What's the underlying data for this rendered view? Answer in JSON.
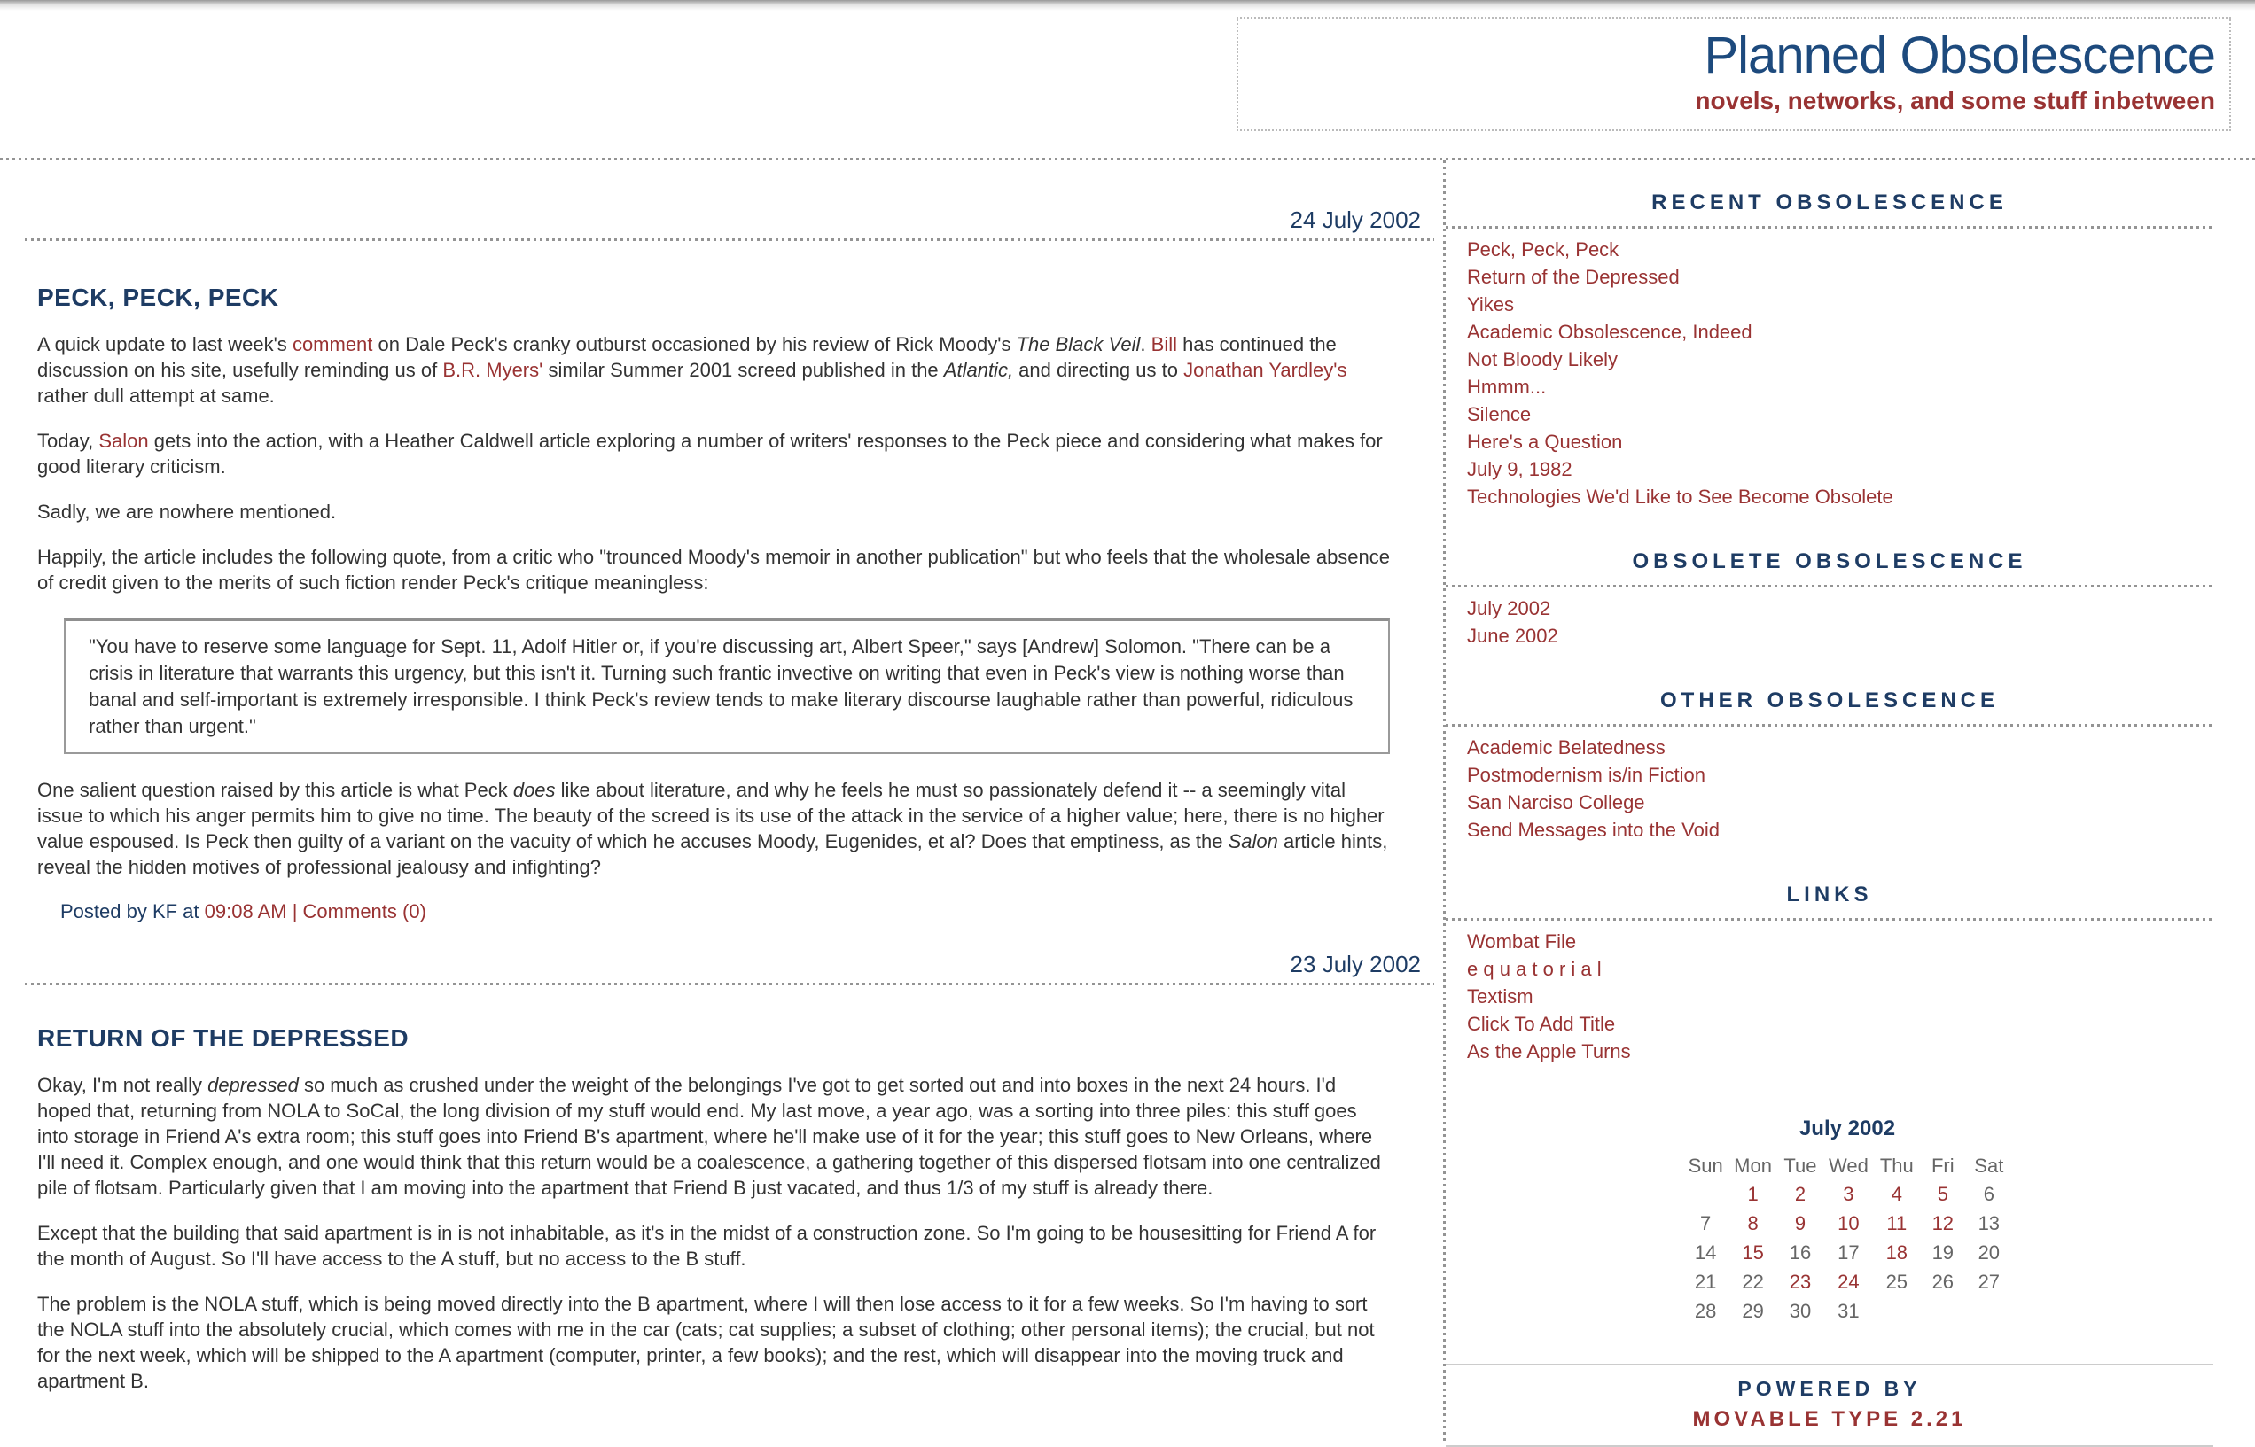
{
  "colors": {
    "navy": "#1e3c64",
    "title_blue": "#1d4a7d",
    "maroon": "#993333",
    "body_text": "#333333",
    "muted": "#666666"
  },
  "header": {
    "title": "Planned Obsolescence",
    "subtitle": "novels, networks, and some stuff inbetween"
  },
  "posts": [
    {
      "date": "24 July 2002",
      "title": "PECK, PECK, PECK",
      "blocks": [
        {
          "type": "p",
          "segments": [
            {
              "t": "A quick update to last week's "
            },
            {
              "t": "comment",
              "s": "link"
            },
            {
              "t": " on Dale Peck's cranky outburst occasioned by his review of Rick Moody's "
            },
            {
              "t": "The Black Veil",
              "s": "em"
            },
            {
              "t": ". "
            },
            {
              "t": "Bill",
              "s": "link"
            },
            {
              "t": " has continued the discussion on his site, usefully reminding us of "
            },
            {
              "t": "B.R. Myers'",
              "s": "link"
            },
            {
              "t": " similar Summer 2001 screed published in the "
            },
            {
              "t": "Atlantic,",
              "s": "em"
            },
            {
              "t": " and directing us to "
            },
            {
              "t": "Jonathan Yardley's",
              "s": "link"
            },
            {
              "t": " rather dull attempt at same."
            }
          ]
        },
        {
          "type": "p",
          "segments": [
            {
              "t": "Today, "
            },
            {
              "t": "Salon",
              "s": "link"
            },
            {
              "t": " gets into the action, with a Heather Caldwell article exploring a number of writers' responses to the Peck piece and considering what makes for good literary criticism."
            }
          ]
        },
        {
          "type": "p",
          "segments": [
            {
              "t": "Sadly, we are nowhere mentioned."
            }
          ]
        },
        {
          "type": "p",
          "segments": [
            {
              "t": "Happily, the article includes the following quote, from a critic who \"trounced Moody's memoir in another publication\" but who feels that the wholesale absence of credit given to the merits of such fiction render Peck's critique meaningless:"
            }
          ]
        },
        {
          "type": "quote",
          "segments": [
            {
              "t": "\"You have to reserve some language for Sept. 11, Adolf Hitler or, if you're discussing art, Albert Speer,\" says [Andrew] Solomon. \"There can be a crisis in literature that warrants this urgency, but this isn't it. Turning such frantic invective on writing that even in Peck's view is nothing worse than banal and self-important is extremely irresponsible. I think Peck's review tends to make literary discourse laughable rather than powerful, ridiculous rather than urgent.\""
            }
          ]
        },
        {
          "type": "p",
          "segments": [
            {
              "t": "One salient question raised by this article is what Peck "
            },
            {
              "t": "does",
              "s": "em"
            },
            {
              "t": " like about literature, and why he feels he must so passionately defend it -- a seemingly vital issue to which his anger permits him to give no time. The beauty of the screed is its use of the attack in the service of a higher value; here, there is no higher value espoused. Is Peck then guilty of a variant on the vacuity of which he accuses Moody, Eugenides, et al? Does that emptiness, as the "
            },
            {
              "t": "Salon",
              "s": "em"
            },
            {
              "t": " article hints, reveal the hidden motives of professional jealousy and infighting?"
            }
          ]
        },
        {
          "type": "byline",
          "segments": [
            {
              "t": "Posted by KF at "
            },
            {
              "t": "09:08 AM",
              "s": "link"
            },
            {
              "t": " | ",
              "s": "sep"
            },
            {
              "t": "Comments (0)",
              "s": "link"
            }
          ]
        }
      ]
    },
    {
      "date": "23 July 2002",
      "title": "RETURN OF THE DEPRESSED",
      "blocks": [
        {
          "type": "p",
          "segments": [
            {
              "t": "Okay, I'm not really "
            },
            {
              "t": "depressed",
              "s": "em"
            },
            {
              "t": " so much as crushed under the weight of the belongings I've got to get sorted out and into boxes in the next 24 hours. I'd hoped that, returning from NOLA to SoCal, the long division of my stuff would end. My last move, a year ago, was a sorting into three piles: this stuff goes into storage in Friend A's extra room; this stuff goes into Friend B's apartment, where he'll make use of it for the year; this stuff goes to New Orleans, where I'll need it. Complex enough, and one would think that this return would be a coalescence, a gathering together of this dispersed flotsam into one centralized pile of flotsam. Particularly given that I am moving into the apartment that Friend B just vacated, and thus 1/3 of my stuff is already there."
            }
          ]
        },
        {
          "type": "p",
          "segments": [
            {
              "t": "Except that the building that said apartment is in is not inhabitable, as it's in the midst of a construction zone. So I'm going to be housesitting for Friend A for the month of August. So I'll have access to the A stuff, but no access to the B stuff."
            }
          ]
        },
        {
          "type": "p",
          "segments": [
            {
              "t": "The problem is the NOLA stuff, which is being moved directly into the B apartment, where I will then lose access to it for a few weeks. So I'm having to sort the NOLA stuff into the absolutely crucial, which comes with me in the car (cats; cat supplies; a subset of clothing; other personal items); the crucial, but not for the next week, which will be shipped to the A apartment (computer, printer, a few books); and the rest, which will disappear into the moving truck and apartment B."
            }
          ]
        }
      ]
    }
  ],
  "sidebar": {
    "sections": [
      {
        "title": "RECENT OBSOLESCENCE",
        "items": [
          "Peck, Peck, Peck",
          "Return of the Depressed",
          "Yikes",
          "Academic Obsolescence, Indeed",
          "Not Bloody Likely",
          "Hmmm...",
          "Silence",
          "Here's a Question",
          "July 9, 1982",
          "Technologies We'd Like to See Become Obsolete"
        ]
      },
      {
        "title": "OBSOLETE OBSOLESCENCE",
        "items": [
          "July 2002",
          "June 2002"
        ]
      },
      {
        "title": "OTHER OBSOLESCENCE",
        "items": [
          "Academic Belatedness",
          "Postmodernism is/in Fiction",
          "San Narciso College",
          "Send Messages into the Void"
        ]
      },
      {
        "title": "LINKS",
        "items": [
          "Wombat File",
          "e q u a t o r i a l",
          "Textism",
          "Click To Add Title",
          "As the Apple Turns"
        ]
      }
    ],
    "calendar": {
      "title": "July 2002",
      "day_headers": [
        "Sun",
        "Mon",
        "Tue",
        "Wed",
        "Thu",
        "Fri",
        "Sat"
      ],
      "weeks": [
        [
          null,
          {
            "d": "1",
            "link": true
          },
          {
            "d": "2",
            "link": true
          },
          {
            "d": "3",
            "link": true
          },
          {
            "d": "4",
            "link": true
          },
          {
            "d": "5",
            "link": true
          },
          {
            "d": "6",
            "link": false
          }
        ],
        [
          {
            "d": "7",
            "link": false
          },
          {
            "d": "8",
            "link": true
          },
          {
            "d": "9",
            "link": true
          },
          {
            "d": "10",
            "link": true
          },
          {
            "d": "11",
            "link": true
          },
          {
            "d": "12",
            "link": true
          },
          {
            "d": "13",
            "link": false
          }
        ],
        [
          {
            "d": "14",
            "link": false
          },
          {
            "d": "15",
            "link": true
          },
          {
            "d": "16",
            "link": false
          },
          {
            "d": "17",
            "link": false
          },
          {
            "d": "18",
            "link": true
          },
          {
            "d": "19",
            "link": false
          },
          {
            "d": "20",
            "link": false
          }
        ],
        [
          {
            "d": "21",
            "link": false
          },
          {
            "d": "22",
            "link": false
          },
          {
            "d": "23",
            "link": true
          },
          {
            "d": "24",
            "link": true
          },
          {
            "d": "25",
            "link": false
          },
          {
            "d": "26",
            "link": false
          },
          {
            "d": "27",
            "link": false
          }
        ],
        [
          {
            "d": "28",
            "link": false
          },
          {
            "d": "29",
            "link": false
          },
          {
            "d": "30",
            "link": false
          },
          {
            "d": "31",
            "link": false
          },
          null,
          null,
          null
        ]
      ]
    },
    "powered": {
      "line1": "POWERED BY",
      "line2": "MOVABLE TYPE 2.21"
    }
  }
}
